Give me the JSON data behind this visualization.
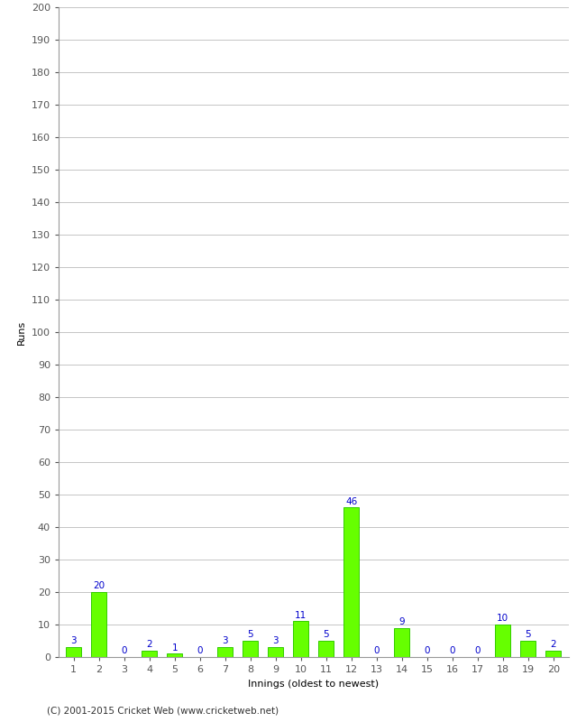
{
  "xlabel": "Innings (oldest to newest)",
  "ylabel": "Runs",
  "categories": [
    1,
    2,
    3,
    4,
    5,
    6,
    7,
    8,
    9,
    10,
    11,
    12,
    13,
    14,
    15,
    16,
    17,
    18,
    19,
    20
  ],
  "values": [
    3,
    20,
    0,
    2,
    1,
    0,
    3,
    5,
    3,
    11,
    5,
    46,
    0,
    9,
    0,
    0,
    0,
    10,
    5,
    2
  ],
  "bar_color": "#66ff00",
  "bar_edge_color": "#33cc00",
  "label_color": "#0000cc",
  "ylim": [
    0,
    200
  ],
  "yticks": [
    0,
    10,
    20,
    30,
    40,
    50,
    60,
    70,
    80,
    90,
    100,
    110,
    120,
    130,
    140,
    150,
    160,
    170,
    180,
    190,
    200
  ],
  "background_color": "#ffffff",
  "grid_color": "#bbbbbb",
  "footer": "(C) 2001-2015 Cricket Web (www.cricketweb.net)",
  "label_fontsize": 7.5,
  "axis_tick_fontsize": 8,
  "axis_label_fontsize": 8,
  "ylabel_fontsize": 8
}
